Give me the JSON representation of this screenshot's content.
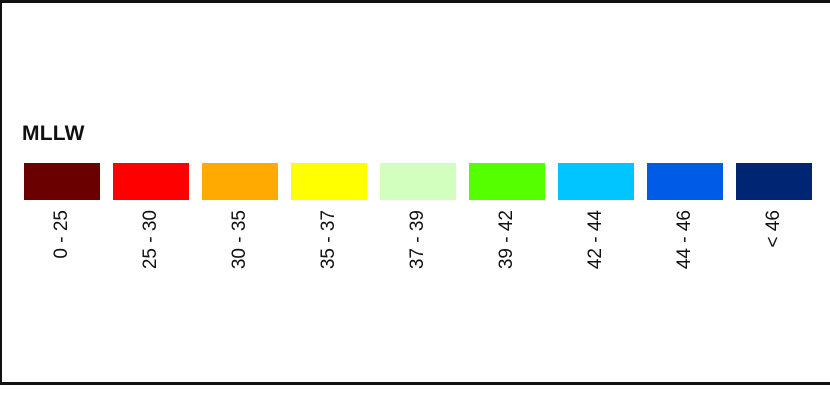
{
  "legend": {
    "title": "MLLW",
    "items": [
      {
        "label": "0 - 25",
        "color": "#6b0000"
      },
      {
        "label": "25 - 30",
        "color": "#ff0000"
      },
      {
        "label": "30 - 35",
        "color": "#ffaa00"
      },
      {
        "label": "35 - 37",
        "color": "#ffff00"
      },
      {
        "label": "37 - 39",
        "color": "#d3ffbe"
      },
      {
        "label": "39 - 42",
        "color": "#55ff00"
      },
      {
        "label": "42 - 44",
        "color": "#00c5ff"
      },
      {
        "label": "44 - 46",
        "color": "#005ce6"
      },
      {
        "label": "< 46",
        "color": "#002673"
      }
    ]
  }
}
